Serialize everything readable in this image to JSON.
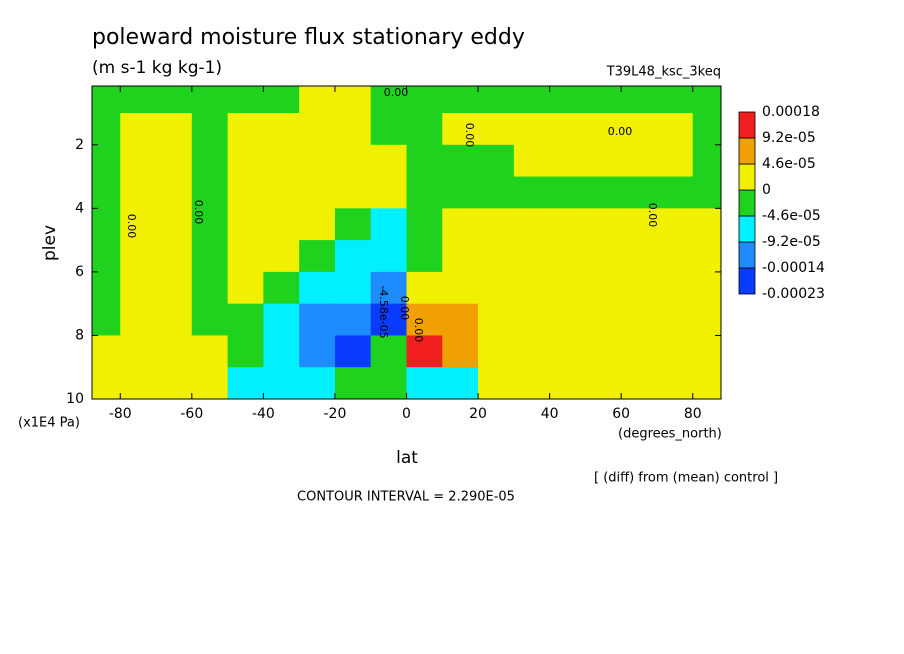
{
  "chart_data": {
    "type": "contourf",
    "title": "poleward moisture flux stationary eddy",
    "subtitle": "(m s-1 kg kg-1)",
    "run_label": "T39L48_ksc_3keq",
    "x_label": "lat",
    "x_unit": "(degrees_north)",
    "y_label": "plev",
    "y_unit": "(x1E4 Pa)",
    "note": "[ (diff) from (mean) control ]",
    "contour_interval": "CONTOUR INTERVAL = 2.290E-05",
    "contour_labels": [
      "0.00",
      "0.00",
      "0.00",
      "0.00",
      "0.00",
      "0.00",
      "-4.58e-05",
      "0.00",
      "0.00"
    ],
    "xlim": [
      -87.9,
      87.9
    ],
    "xticks": [
      -80,
      -60,
      -40,
      -20,
      0,
      20,
      40,
      60,
      80
    ],
    "ylim": [
      10,
      0.15
    ],
    "yticks": [
      2,
      4,
      6,
      8,
      10
    ],
    "x": [
      -85,
      -75,
      -65,
      -55,
      -45,
      -35,
      -25,
      -15,
      -5,
      5,
      15,
      25,
      35,
      45,
      55,
      65,
      75,
      85
    ],
    "y": [
      0.5,
      1.5,
      2.5,
      3.5,
      4.5,
      5.5,
      6.5,
      7.5,
      8.5,
      9.5
    ],
    "z": [
      [
        -2e-05,
        -2e-05,
        -2e-05,
        -2e-05,
        -2e-05,
        -2e-05,
        2e-05,
        2e-05,
        -2e-05,
        -2e-05,
        -2e-05,
        -2e-05,
        -2e-05,
        -2e-05,
        -2e-05,
        -2e-05,
        -2e-05,
        -2e-05
      ],
      [
        -2e-05,
        2e-05,
        2e-05,
        -2e-05,
        2e-05,
        2e-05,
        2e-05,
        2e-05,
        -2e-05,
        -2e-05,
        2e-05,
        2e-05,
        2e-05,
        2e-05,
        2e-05,
        2e-05,
        2e-05,
        -2e-05
      ],
      [
        -2e-05,
        2e-05,
        2e-05,
        -2e-05,
        2e-05,
        2e-05,
        2e-05,
        2e-05,
        2e-05,
        -2e-05,
        -2e-05,
        -2e-05,
        2e-05,
        2e-05,
        2e-05,
        2e-05,
        2e-05,
        -2e-05
      ],
      [
        -2e-05,
        2e-05,
        2e-05,
        -2e-05,
        2e-05,
        2e-05,
        2e-05,
        2e-05,
        2e-05,
        -2e-05,
        -2e-05,
        -2e-05,
        -2e-05,
        -2e-05,
        -2e-05,
        -2e-05,
        -2e-05,
        -2e-05
      ],
      [
        -2e-05,
        2e-05,
        2e-05,
        -2e-05,
        2e-05,
        2e-05,
        2e-05,
        -2e-05,
        -7e-05,
        -2e-05,
        2e-05,
        2e-05,
        2e-05,
        2e-05,
        2e-05,
        2e-05,
        2e-05,
        2e-05
      ],
      [
        -2e-05,
        2e-05,
        2e-05,
        -2e-05,
        2e-05,
        2e-05,
        -2e-05,
        -7e-05,
        -7e-05,
        -2e-05,
        2e-05,
        2e-05,
        2e-05,
        2e-05,
        2e-05,
        2e-05,
        2e-05,
        2e-05
      ],
      [
        -2e-05,
        2e-05,
        2e-05,
        -2e-05,
        2e-05,
        -2e-05,
        -7e-05,
        -7e-05,
        -0.00012,
        2e-05,
        2e-05,
        2e-05,
        2e-05,
        2e-05,
        2e-05,
        2e-05,
        2e-05,
        2e-05
      ],
      [
        -2e-05,
        2e-05,
        2e-05,
        -2e-05,
        -2e-05,
        -7e-05,
        -0.00012,
        -0.00012,
        -0.00018,
        7e-05,
        7e-05,
        2e-05,
        2e-05,
        2e-05,
        2e-05,
        2e-05,
        2e-05,
        2e-05
      ],
      [
        2e-05,
        2e-05,
        2e-05,
        2e-05,
        -2e-05,
        -7e-05,
        -0.00012,
        -0.00018,
        -2e-05,
        0.00013,
        7e-05,
        2e-05,
        2e-05,
        2e-05,
        2e-05,
        2e-05,
        2e-05,
        2e-05
      ],
      [
        2e-05,
        2e-05,
        2e-05,
        2e-05,
        -7e-05,
        -7e-05,
        -7e-05,
        -2e-05,
        -2e-05,
        -7e-05,
        -7e-05,
        2e-05,
        2e-05,
        2e-05,
        2e-05,
        2e-05,
        2e-05,
        2e-05
      ]
    ],
    "levels": [
      {
        "value": -0.00023,
        "label": "-0.00023"
      },
      {
        "value": -0.00014,
        "label": "-0.00014"
      },
      {
        "value": -9.2e-05,
        "label": "-9.2e-05"
      },
      {
        "value": -4.6e-05,
        "label": "-4.6e-05"
      },
      0,
      {
        "value": 4.6e-05,
        "label": "4.6e-05"
      },
      {
        "value": 9.2e-05,
        "label": "9.2e-05"
      },
      {
        "value": 0.00018,
        "label": "0.00018"
      }
    ],
    "colors": [
      "#0a3cff",
      "#1e8cff",
      "#00f0ff",
      "#1ed21e",
      "#f0f000",
      "#f0a000",
      "#f01e1e"
    ]
  }
}
